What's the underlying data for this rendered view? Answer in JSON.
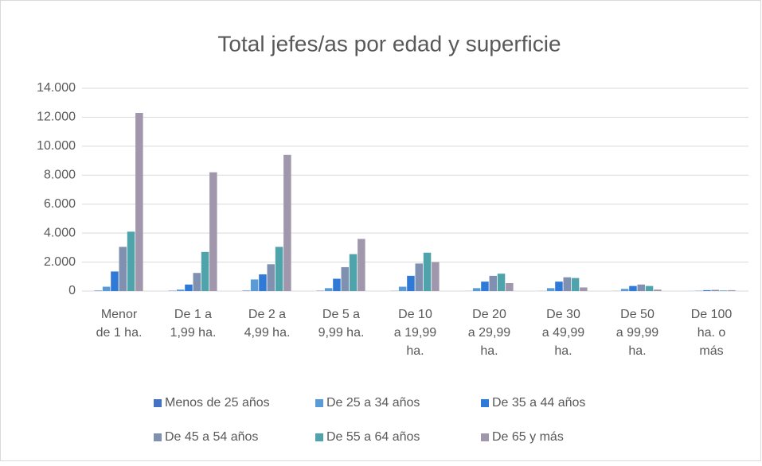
{
  "chart_data": {
    "type": "bar",
    "title": "Total jefes/as por edad y superficie",
    "categories": [
      [
        "Menor",
        "de 1 ha."
      ],
      [
        "De 1 a",
        "1,99 ha."
      ],
      [
        "De 2 a",
        "4,99 ha."
      ],
      [
        "De 5 a",
        "9,99 ha."
      ],
      [
        "De 10",
        "a 19,99",
        "ha."
      ],
      [
        "De 20",
        "a 29,99",
        "ha."
      ],
      [
        "De 30",
        "a 49,99",
        "ha."
      ],
      [
        "De 50",
        "a 99,99",
        "ha."
      ],
      [
        "De 100",
        "ha. o",
        "más"
      ]
    ],
    "series": [
      {
        "name": "Menos de 25 años",
        "color": "#4472c4",
        "values": [
          30,
          20,
          30,
          20,
          10,
          5,
          5,
          5,
          2
        ]
      },
      {
        "name": "De 25 a 34 años",
        "color": "#5b9bd5",
        "values": [
          300,
          100,
          800,
          200,
          300,
          200,
          200,
          150,
          20
        ]
      },
      {
        "name": "De 35 a 44 años",
        "color": "#2f7ad6",
        "values": [
          1350,
          450,
          1150,
          850,
          1050,
          650,
          650,
          350,
          60
        ]
      },
      {
        "name": "De 45 a 54 años",
        "color": "#8090b0",
        "values": [
          3050,
          1250,
          1850,
          1650,
          1900,
          1050,
          950,
          450,
          80
        ]
      },
      {
        "name": "De 55 a 64 años",
        "color": "#4fa3aa",
        "values": [
          4100,
          2700,
          3050,
          2550,
          2650,
          1200,
          900,
          350,
          40
        ]
      },
      {
        "name": "De 65 y más",
        "color": "#a097ad",
        "values": [
          12300,
          8200,
          9400,
          3600,
          2000,
          550,
          250,
          100,
          60
        ]
      }
    ],
    "ylim": [
      0,
      14000
    ],
    "yticks": [
      0,
      {
        "value": 2000,
        "label": "2.000"
      },
      {
        "value": 4000,
        "label": "4.000"
      },
      {
        "value": 6000,
        "label": "6.000"
      },
      {
        "value": 8000,
        "label": "8.000"
      },
      {
        "value": 10000,
        "label": "10.000"
      },
      {
        "value": 12000,
        "label": "12.000"
      },
      {
        "value": 14000,
        "label": "14.000"
      }
    ],
    "grid": true,
    "legend": "bottom"
  }
}
